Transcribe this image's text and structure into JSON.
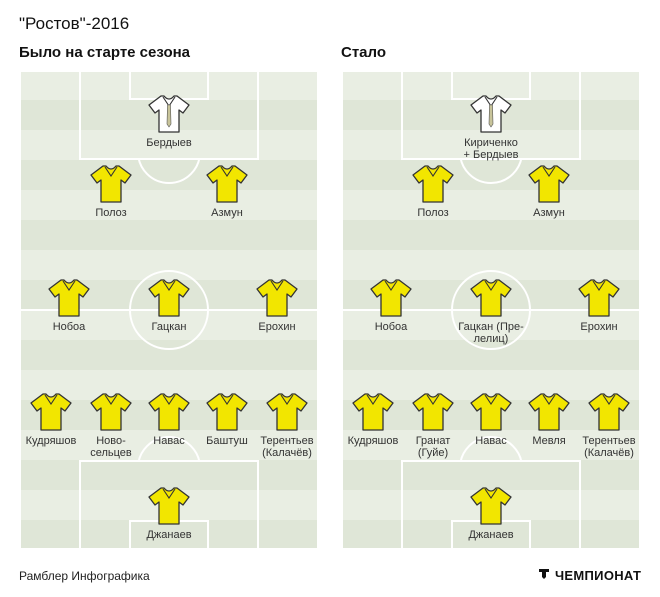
{
  "title": "\"Ростов\"-2016",
  "left": {
    "subtitle": "Было на старте сезона",
    "players": [
      {
        "name": "Бердыев",
        "kit": "goalkeeper"
      },
      {
        "name": "Полоз",
        "kit": "outfield"
      },
      {
        "name": "Азмун",
        "kit": "outfield"
      },
      {
        "name": "Нобоа",
        "kit": "outfield"
      },
      {
        "name": "Гацкан",
        "kit": "outfield"
      },
      {
        "name": "Ерохин",
        "kit": "outfield"
      },
      {
        "name": "Кудряшов",
        "kit": "outfield"
      },
      {
        "name": "Ново-\nсельцев",
        "kit": "outfield"
      },
      {
        "name": "Навас",
        "kit": "outfield"
      },
      {
        "name": "Баштуш",
        "kit": "outfield"
      },
      {
        "name": "Терентьев\n(Калачёв)",
        "kit": "outfield"
      },
      {
        "name": "Джанаев",
        "kit": "outfield"
      }
    ]
  },
  "right": {
    "subtitle": "Стало",
    "players": [
      {
        "name": "Кириченко\n+ Бердыев",
        "kit": "goalkeeper"
      },
      {
        "name": "Полоз",
        "kit": "outfield"
      },
      {
        "name": "Азмун",
        "kit": "outfield"
      },
      {
        "name": "Нобоа",
        "kit": "outfield"
      },
      {
        "name": "Гацкан (Пре-\nлелиц)",
        "kit": "outfield"
      },
      {
        "name": "Ерохин",
        "kit": "outfield"
      },
      {
        "name": "Кудряшов",
        "kit": "outfield"
      },
      {
        "name": "Гранат\n(Гуйе)",
        "kit": "outfield"
      },
      {
        "name": "Навас",
        "kit": "outfield"
      },
      {
        "name": "Мевля",
        "kit": "outfield"
      },
      {
        "name": "Терентьев\n(Калачёв)",
        "kit": "outfield"
      },
      {
        "name": "Джанаев",
        "kit": "outfield"
      }
    ]
  },
  "footer": {
    "credit": "Рамблер Инфографика",
    "brand": "ЧЕМПИОНАТ"
  },
  "colors": {
    "outfield_kit": "#f2e600",
    "goalkeeper_kit": "#ffffff",
    "pitch_light": "#e9eee3",
    "pitch_dark": "#dfe6d7"
  },
  "icons": {
    "shirt": "shirt-icon",
    "brand": "championat-logo-icon"
  }
}
